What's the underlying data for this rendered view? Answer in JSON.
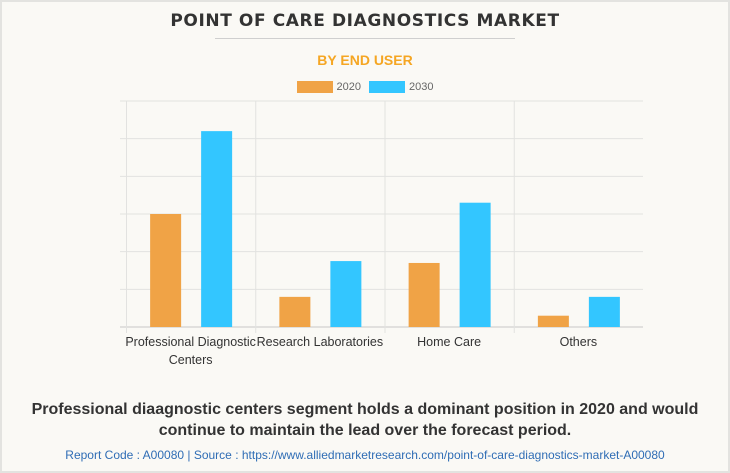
{
  "chart_data": {
    "type": "bar",
    "title": "POINT OF CARE DIAGNOSTICS MARKET",
    "subtitle": "BY END USER",
    "categories": [
      "Professional Diagnostic Centers",
      "Research Laboratories",
      "Home Care",
      "Others"
    ],
    "category_label_lines": [
      [
        "Professional Diagnostic",
        "Centers"
      ],
      [
        "Research Laboratories"
      ],
      [
        "Home Care"
      ],
      [
        "Others"
      ]
    ],
    "series": [
      {
        "name": "2020",
        "color": "#f0a346",
        "values": [
          3.0,
          0.8,
          1.7,
          0.3
        ]
      },
      {
        "name": "2030",
        "color": "#33c6ff",
        "values": [
          5.2,
          1.75,
          3.3,
          0.8
        ]
      }
    ],
    "ylim": [
      0,
      6
    ],
    "y_gridlines": 6,
    "y_tick_labels_shown": false,
    "xlabel": "",
    "ylabel": "",
    "grid": true,
    "legend_position": "top-center"
  },
  "caption": "Professional diaagnostic centers segment holds a dominant position in 2020 and would continue to maintain the lead over the forecast period.",
  "source_line": "Report Code : A00080  |  Source : https://www.alliedmarketresearch.com/point-of-care-diagnostics-market-A00080"
}
